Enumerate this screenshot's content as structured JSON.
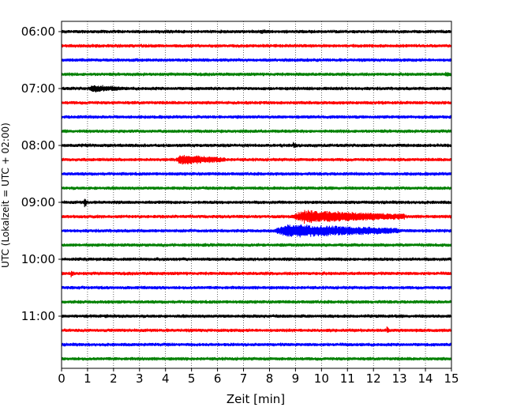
{
  "chart_data": {
    "type": "line",
    "title": "",
    "xlabel": "Zeit  [min]",
    "ylabel": "UTC (Lokalzeit = UTC + 02:00)",
    "xlim": [
      0,
      15
    ],
    "x_ticks": [
      0,
      1,
      2,
      3,
      4,
      5,
      6,
      7,
      8,
      9,
      10,
      11,
      12,
      13,
      14,
      15
    ],
    "x_tick_labels": [
      "0",
      "1",
      "2",
      "3",
      "4",
      "5",
      "6",
      "7",
      "8",
      "9",
      "10",
      "11",
      "12",
      "13",
      "14",
      "15"
    ],
    "grid": {
      "x": true,
      "y": false,
      "style": "dotted"
    },
    "y_tick_labels": [
      "06:00",
      "07:00",
      "08:00",
      "09:00",
      "10:00",
      "11:00"
    ],
    "y_tick_trace_index": [
      0,
      4,
      8,
      12,
      16,
      20
    ],
    "trace_interval_minutes": 15,
    "color_cycle": [
      "#000000",
      "#ff0000",
      "#0000ff",
      "#008000"
    ],
    "traces": [
      {
        "start": "06:00",
        "color": "#000000",
        "events": [
          {
            "t": 7.6,
            "amp": 4,
            "dur": 0.5
          },
          {
            "t": 14.9,
            "amp": 3,
            "dur": 0.2
          }
        ]
      },
      {
        "start": "06:15",
        "color": "#ff0000",
        "events": []
      },
      {
        "start": "06:30",
        "color": "#0000ff",
        "events": []
      },
      {
        "start": "06:45",
        "color": "#008000",
        "events": [
          {
            "t": 14.7,
            "amp": 4,
            "dur": 0.6
          }
        ]
      },
      {
        "start": "07:00",
        "color": "#000000",
        "events": [
          {
            "t": 1.0,
            "amp": 6,
            "dur": 1.4
          }
        ]
      },
      {
        "start": "07:15",
        "color": "#ff0000",
        "events": []
      },
      {
        "start": "07:30",
        "color": "#0000ff",
        "events": []
      },
      {
        "start": "07:45",
        "color": "#008000",
        "events": []
      },
      {
        "start": "08:00",
        "color": "#000000",
        "events": [
          {
            "t": 8.9,
            "amp": 6,
            "dur": 0.15
          }
        ]
      },
      {
        "start": "08:15",
        "color": "#ff0000",
        "events": [
          {
            "t": 4.3,
            "amp": 8,
            "dur": 2.0
          }
        ]
      },
      {
        "start": "08:30",
        "color": "#0000ff",
        "events": []
      },
      {
        "start": "08:45",
        "color": "#008000",
        "events": []
      },
      {
        "start": "09:00",
        "color": "#000000",
        "events": [
          {
            "t": 0.85,
            "amp": 8,
            "dur": 0.15
          }
        ]
      },
      {
        "start": "09:15",
        "color": "#ff0000",
        "events": [
          {
            "t": 8.7,
            "amp": 10,
            "dur": 4.5
          }
        ]
      },
      {
        "start": "09:30",
        "color": "#0000ff",
        "events": [
          {
            "t": 8.0,
            "amp": 10,
            "dur": 5.0
          }
        ]
      },
      {
        "start": "09:45",
        "color": "#008000",
        "events": []
      },
      {
        "start": "10:00",
        "color": "#000000",
        "events": []
      },
      {
        "start": "10:15",
        "color": "#ff0000",
        "events": [
          {
            "t": 0.35,
            "amp": 7,
            "dur": 0.12
          }
        ]
      },
      {
        "start": "10:30",
        "color": "#0000ff",
        "events": []
      },
      {
        "start": "10:45",
        "color": "#008000",
        "events": []
      },
      {
        "start": "11:00",
        "color": "#000000",
        "events": []
      },
      {
        "start": "11:15",
        "color": "#ff0000",
        "events": [
          {
            "t": 12.5,
            "amp": 6,
            "dur": 0.12
          }
        ]
      },
      {
        "start": "11:30",
        "color": "#0000ff",
        "events": [
          {
            "t": 7.4,
            "amp": 3,
            "dur": 0.2
          }
        ]
      },
      {
        "start": "11:45",
        "color": "#008000",
        "events": []
      }
    ]
  }
}
